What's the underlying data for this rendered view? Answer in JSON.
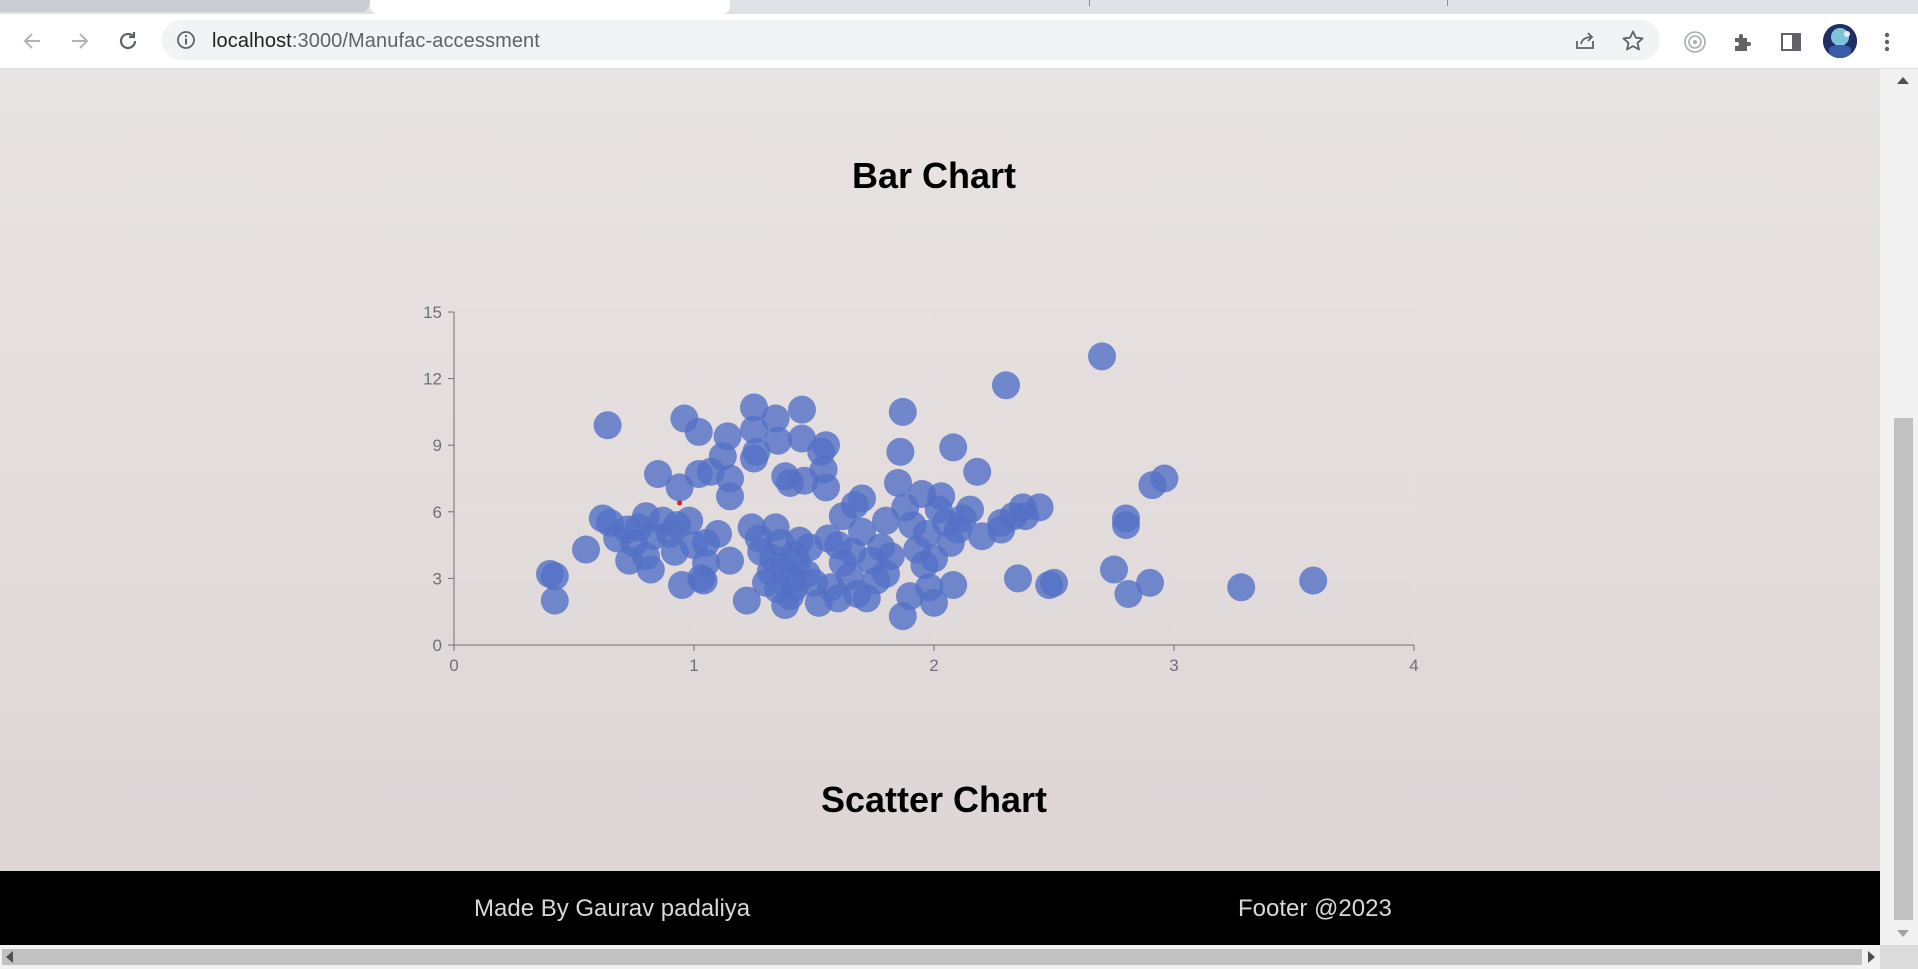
{
  "browser": {
    "url_host": "localhost",
    "url_path": ":3000/Manufac-accessment",
    "icons": [
      "back-arrow-icon",
      "forward-arrow-icon",
      "reload-icon",
      "info-icon",
      "share-icon",
      "star-icon",
      "extension-target-icon",
      "puzzle-icon",
      "side-panel-icon",
      "profile-avatar",
      "kebab-menu-icon"
    ]
  },
  "page": {
    "heading_top": "Bar Chart",
    "heading_bottom": "Scatter Chart",
    "background": "#e6e0e0"
  },
  "footer": {
    "left_text": "Made By Gaurav padaliya",
    "right_text": "Footer @2023"
  },
  "chart_data": {
    "type": "scatter",
    "title": "",
    "xlabel": "",
    "ylabel": "",
    "xlim": [
      0,
      4
    ],
    "ylim": [
      0,
      15
    ],
    "x_ticks": [
      "0",
      "1",
      "2",
      "3",
      "4"
    ],
    "y_ticks": [
      "0",
      "3",
      "6",
      "9",
      "12",
      "15"
    ],
    "grid": true,
    "point_color": "#5470c6",
    "marker_color": "#d62728",
    "highlight_point": [
      0.94,
      6.4
    ],
    "points": [
      [
        0.4,
        3.2
      ],
      [
        0.42,
        3.1
      ],
      [
        0.42,
        2.0
      ],
      [
        0.55,
        4.3
      ],
      [
        0.62,
        5.7
      ],
      [
        0.64,
        9.9
      ],
      [
        0.65,
        5.5
      ],
      [
        0.68,
        4.8
      ],
      [
        0.72,
        5.2
      ],
      [
        0.73,
        3.8
      ],
      [
        0.75,
        4.6
      ],
      [
        0.77,
        5.3
      ],
      [
        0.8,
        4.0
      ],
      [
        0.8,
        5.8
      ],
      [
        0.82,
        3.4
      ],
      [
        0.83,
        4.9
      ],
      [
        0.85,
        7.7
      ],
      [
        0.87,
        5.6
      ],
      [
        0.9,
        5.0
      ],
      [
        0.92,
        4.2
      ],
      [
        0.93,
        5.4
      ],
      [
        0.94,
        7.1
      ],
      [
        0.95,
        2.7
      ],
      [
        0.96,
        10.2
      ],
      [
        0.98,
        5.6
      ],
      [
        1.0,
        4.5
      ],
      [
        1.02,
        9.6
      ],
      [
        1.02,
        7.7
      ],
      [
        1.03,
        3.0
      ],
      [
        1.04,
        2.9
      ],
      [
        1.05,
        4.6
      ],
      [
        1.05,
        3.7
      ],
      [
        1.07,
        7.8
      ],
      [
        1.1,
        5.0
      ],
      [
        1.12,
        8.5
      ],
      [
        1.14,
        9.4
      ],
      [
        1.15,
        7.5
      ],
      [
        1.15,
        6.7
      ],
      [
        1.15,
        3.8
      ],
      [
        1.22,
        2.0
      ],
      [
        1.24,
        5.3
      ],
      [
        1.25,
        9.7
      ],
      [
        1.25,
        10.7
      ],
      [
        1.25,
        8.4
      ],
      [
        1.26,
        8.7
      ],
      [
        1.27,
        4.8
      ],
      [
        1.28,
        4.2
      ],
      [
        1.3,
        2.8
      ],
      [
        1.32,
        3.3
      ],
      [
        1.33,
        3.9
      ],
      [
        1.34,
        10.2
      ],
      [
        1.34,
        5.3
      ],
      [
        1.35,
        9.2
      ],
      [
        1.35,
        2.5
      ],
      [
        1.36,
        4.6
      ],
      [
        1.37,
        3.5
      ],
      [
        1.38,
        1.8
      ],
      [
        1.38,
        7.6
      ],
      [
        1.4,
        2.2
      ],
      [
        1.4,
        7.3
      ],
      [
        1.41,
        3.0
      ],
      [
        1.42,
        4.1
      ],
      [
        1.42,
        2.6
      ],
      [
        1.43,
        3.7
      ],
      [
        1.44,
        4.7
      ],
      [
        1.45,
        9.3
      ],
      [
        1.45,
        10.6
      ],
      [
        1.46,
        7.4
      ],
      [
        1.47,
        3.2
      ],
      [
        1.48,
        4.4
      ],
      [
        1.5,
        2.8
      ],
      [
        1.52,
        1.9
      ],
      [
        1.53,
        8.7
      ],
      [
        1.54,
        7.9
      ],
      [
        1.55,
        7.1
      ],
      [
        1.55,
        9.0
      ],
      [
        1.56,
        4.8
      ],
      [
        1.57,
        2.6
      ],
      [
        1.6,
        2.1
      ],
      [
        1.6,
        4.5
      ],
      [
        1.62,
        3.7
      ],
      [
        1.62,
        5.8
      ],
      [
        1.65,
        3.1
      ],
      [
        1.66,
        4.2
      ],
      [
        1.67,
        6.3
      ],
      [
        1.68,
        2.3
      ],
      [
        1.7,
        5.1
      ],
      [
        1.7,
        6.6
      ],
      [
        1.72,
        2.1
      ],
      [
        1.74,
        3.8
      ],
      [
        1.76,
        2.9
      ],
      [
        1.78,
        4.4
      ],
      [
        1.8,
        3.2
      ],
      [
        1.8,
        5.6
      ],
      [
        1.82,
        4.0
      ],
      [
        1.85,
        7.3
      ],
      [
        1.86,
        8.7
      ],
      [
        1.87,
        10.5
      ],
      [
        1.87,
        1.3
      ],
      [
        1.88,
        6.2
      ],
      [
        1.9,
        2.2
      ],
      [
        1.91,
        5.4
      ],
      [
        1.93,
        4.3
      ],
      [
        1.95,
        6.8
      ],
      [
        1.96,
        3.6
      ],
      [
        1.97,
        5.0
      ],
      [
        1.98,
        2.6
      ],
      [
        2.0,
        1.9
      ],
      [
        2.0,
        3.9
      ],
      [
        2.02,
        6.1
      ],
      [
        2.03,
        6.7
      ],
      [
        2.05,
        5.5
      ],
      [
        2.07,
        4.6
      ],
      [
        2.08,
        8.9
      ],
      [
        2.08,
        2.7
      ],
      [
        2.1,
        5.2
      ],
      [
        2.12,
        5.7
      ],
      [
        2.15,
        6.1
      ],
      [
        2.18,
        7.8
      ],
      [
        2.2,
        4.9
      ],
      [
        2.28,
        5.5
      ],
      [
        2.28,
        5.2
      ],
      [
        2.3,
        11.7
      ],
      [
        2.33,
        5.8
      ],
      [
        2.35,
        3.0
      ],
      [
        2.37,
        6.2
      ],
      [
        2.38,
        5.8
      ],
      [
        2.44,
        6.2
      ],
      [
        2.48,
        2.7
      ],
      [
        2.5,
        2.8
      ],
      [
        2.7,
        13.0
      ],
      [
        2.75,
        3.4
      ],
      [
        2.8,
        5.7
      ],
      [
        2.8,
        5.4
      ],
      [
        2.81,
        2.3
      ],
      [
        2.9,
        2.8
      ],
      [
        2.91,
        7.2
      ],
      [
        2.96,
        7.5
      ],
      [
        3.28,
        2.6
      ],
      [
        3.58,
        2.9
      ]
    ]
  }
}
